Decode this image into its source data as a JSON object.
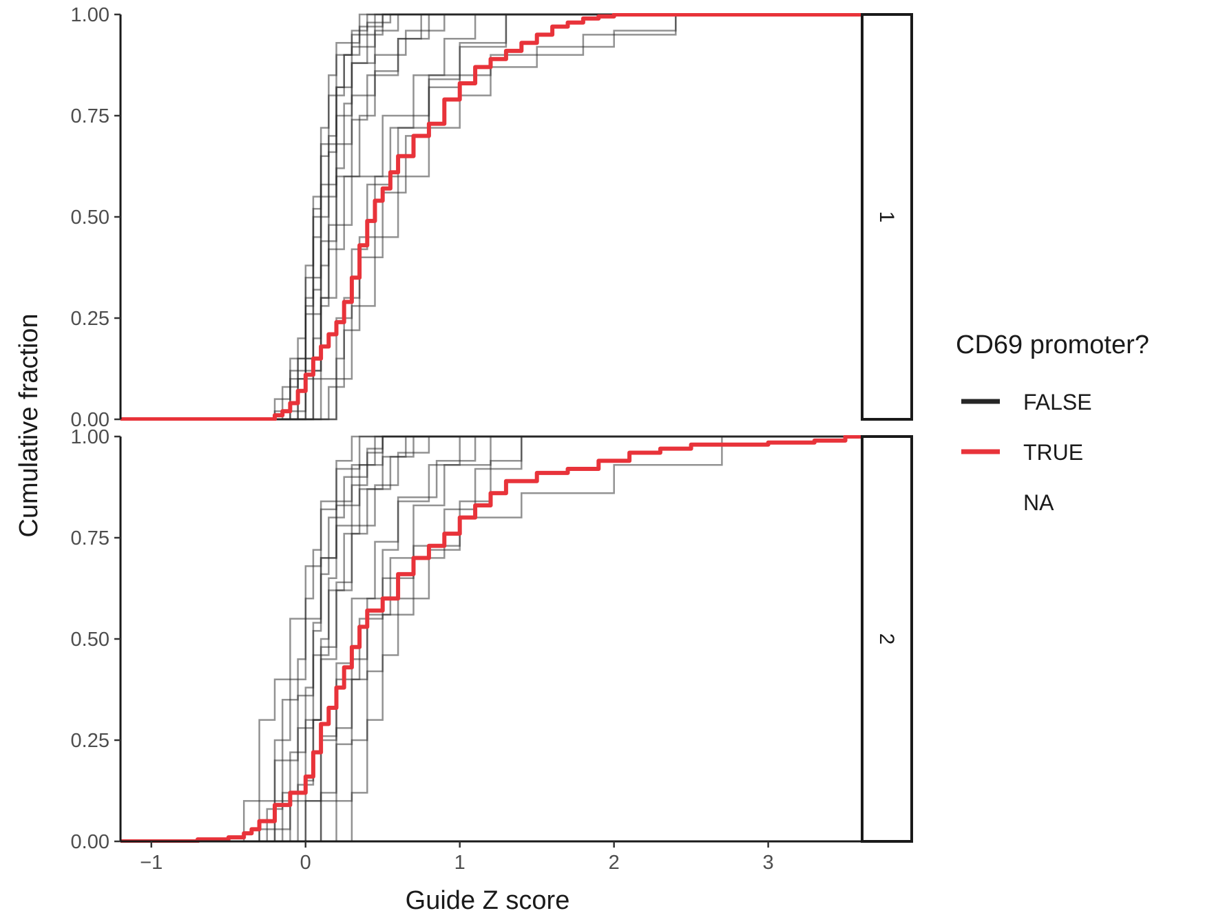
{
  "chart_data": {
    "type": "line",
    "subtype": "ecdf-step",
    "facet_layout": "rows",
    "xlabel": "Guide Z score",
    "ylabel": "Cumulative fraction",
    "xlim": [
      -1.2,
      3.6
    ],
    "ylim": [
      0,
      1
    ],
    "x_ticks": [
      -1,
      0,
      1,
      2,
      3
    ],
    "y_ticks": [
      0,
      0.25,
      0.5,
      0.75,
      1
    ],
    "x_tick_labels": [
      "−1",
      "0",
      "1",
      "2",
      "3"
    ],
    "y_tick_labels": [
      "0.00",
      "0.25",
      "0.50",
      "0.75",
      "1.00"
    ],
    "grid": false,
    "legend": {
      "title": "CD69 promoter?",
      "placement": "right",
      "entries": [
        {
          "label": "FALSE",
          "color": "#262626"
        },
        {
          "label": "TRUE",
          "color": "#e8333a"
        },
        {
          "label": "NA",
          "color": null
        }
      ]
    },
    "colors": {
      "FALSE": "#262626",
      "TRUE": "#e8333a"
    },
    "panels": [
      {
        "strip_label": "1",
        "true_series": {
          "x": [
            -1.2,
            -0.3,
            -0.2,
            -0.15,
            -0.1,
            -0.05,
            0.0,
            0.05,
            0.1,
            0.15,
            0.2,
            0.25,
            0.3,
            0.35,
            0.4,
            0.45,
            0.5,
            0.55,
            0.6,
            0.7,
            0.8,
            0.9,
            1.0,
            1.1,
            1.2,
            1.3,
            1.4,
            1.5,
            1.6,
            1.7,
            1.8,
            1.9,
            2.0,
            2.2,
            2.5,
            3.6
          ],
          "y": [
            0.0,
            0.0,
            0.01,
            0.02,
            0.04,
            0.07,
            0.11,
            0.15,
            0.18,
            0.21,
            0.24,
            0.29,
            0.35,
            0.43,
            0.49,
            0.54,
            0.57,
            0.61,
            0.65,
            0.7,
            0.73,
            0.79,
            0.83,
            0.87,
            0.89,
            0.91,
            0.93,
            0.95,
            0.97,
            0.98,
            0.99,
            0.995,
            1.0,
            1.0,
            1.0,
            1.0
          ]
        },
        "false_series": [
          {
            "x": [
              -0.15,
              -0.05,
              0.0,
              0.05,
              0.1,
              0.15,
              0.2,
              0.3,
              0.4,
              0.55
            ],
            "y": [
              0.0,
              0.1,
              0.3,
              0.5,
              0.65,
              0.8,
              0.9,
              0.95,
              0.98,
              1.0
            ]
          },
          {
            "x": [
              -0.1,
              0.0,
              0.05,
              0.1,
              0.15,
              0.2,
              0.25,
              0.35,
              0.5
            ],
            "y": [
              0.0,
              0.15,
              0.35,
              0.55,
              0.7,
              0.82,
              0.9,
              0.97,
              1.0
            ]
          },
          {
            "x": [
              -0.2,
              -0.1,
              0.0,
              0.05,
              0.1,
              0.2,
              0.3,
              0.45,
              0.6
            ],
            "y": [
              0.0,
              0.12,
              0.28,
              0.45,
              0.58,
              0.75,
              0.88,
              0.96,
              1.0
            ]
          },
          {
            "x": [
              -0.25,
              -0.15,
              -0.05,
              0.0,
              0.05,
              0.1,
              0.15,
              0.2,
              0.35
            ],
            "y": [
              0.0,
              0.08,
              0.2,
              0.38,
              0.55,
              0.72,
              0.85,
              0.93,
              1.0
            ]
          },
          {
            "x": [
              -0.1,
              0.0,
              0.1,
              0.15,
              0.2,
              0.25,
              0.3,
              0.4,
              0.5
            ],
            "y": [
              0.0,
              0.1,
              0.3,
              0.48,
              0.62,
              0.78,
              0.88,
              0.95,
              1.0
            ]
          },
          {
            "x": [
              -0.05,
              0.05,
              0.1,
              0.15,
              0.25,
              0.35,
              0.45,
              0.6,
              0.75
            ],
            "y": [
              0.0,
              0.12,
              0.28,
              0.42,
              0.6,
              0.75,
              0.86,
              0.94,
              1.0
            ]
          },
          {
            "x": [
              -0.3,
              -0.2,
              -0.1,
              0.0,
              0.05,
              0.1,
              0.2,
              0.3,
              0.45
            ],
            "y": [
              0.0,
              0.05,
              0.15,
              0.35,
              0.52,
              0.68,
              0.82,
              0.92,
              1.0
            ]
          },
          {
            "x": [
              0.0,
              0.1,
              0.2,
              0.3,
              0.4,
              0.55,
              0.7,
              0.9,
              1.1
            ],
            "y": [
              0.0,
              0.1,
              0.25,
              0.42,
              0.58,
              0.72,
              0.85,
              0.94,
              1.0
            ]
          },
          {
            "x": [
              0.05,
              0.15,
              0.25,
              0.35,
              0.5,
              0.65,
              0.8,
              1.0,
              1.3
            ],
            "y": [
              0.0,
              0.08,
              0.22,
              0.4,
              0.56,
              0.7,
              0.82,
              0.92,
              1.0
            ]
          },
          {
            "x": [
              0.1,
              0.2,
              0.3,
              0.45,
              0.6,
              0.8,
              1.0,
              1.2,
              1.5,
              2.0,
              2.4
            ],
            "y": [
              0.0,
              0.1,
              0.28,
              0.45,
              0.6,
              0.72,
              0.8,
              0.87,
              0.92,
              0.96,
              1.0
            ]
          },
          {
            "x": [
              -0.6,
              -0.2,
              0.0,
              0.1,
              0.2,
              0.3,
              0.5,
              0.8,
              1.2,
              1.8,
              2.4
            ],
            "y": [
              0.0,
              0.02,
              0.12,
              0.3,
              0.48,
              0.6,
              0.75,
              0.85,
              0.9,
              0.95,
              1.0
            ]
          },
          {
            "x": [
              -0.15,
              -0.05,
              0.05,
              0.1,
              0.15,
              0.2,
              0.25,
              0.3,
              0.4
            ],
            "y": [
              0.0,
              0.15,
              0.32,
              0.5,
              0.66,
              0.8,
              0.9,
              0.96,
              1.0
            ]
          },
          {
            "x": [
              0.0,
              0.05,
              0.1,
              0.15,
              0.2,
              0.3,
              0.45,
              0.65,
              0.9
            ],
            "y": [
              0.0,
              0.2,
              0.38,
              0.55,
              0.68,
              0.8,
              0.9,
              0.96,
              1.0
            ]
          },
          {
            "x": [
              -0.2,
              -0.1,
              0.0,
              0.1,
              0.2,
              0.3,
              0.4,
              0.6,
              0.8
            ],
            "y": [
              0.0,
              0.1,
              0.26,
              0.44,
              0.6,
              0.74,
              0.85,
              0.94,
              1.0
            ]
          },
          {
            "x": [
              0.15,
              0.2,
              0.25,
              0.35,
              0.45,
              0.6,
              0.8,
              1.0,
              1.3
            ],
            "y": [
              0.0,
              0.15,
              0.3,
              0.45,
              0.6,
              0.72,
              0.84,
              0.93,
              1.0
            ]
          }
        ]
      },
      {
        "strip_label": "2",
        "true_series": {
          "x": [
            -1.2,
            -0.7,
            -0.5,
            -0.4,
            -0.35,
            -0.3,
            -0.2,
            -0.1,
            0.0,
            0.05,
            0.1,
            0.15,
            0.2,
            0.25,
            0.3,
            0.35,
            0.4,
            0.5,
            0.6,
            0.7,
            0.8,
            0.9,
            1.0,
            1.1,
            1.2,
            1.3,
            1.5,
            1.7,
            1.9,
            2.1,
            2.3,
            2.5,
            3.0,
            3.3,
            3.5,
            3.6
          ],
          "y": [
            0.0,
            0.005,
            0.01,
            0.02,
            0.03,
            0.05,
            0.09,
            0.12,
            0.16,
            0.22,
            0.29,
            0.33,
            0.38,
            0.43,
            0.48,
            0.53,
            0.57,
            0.6,
            0.66,
            0.7,
            0.73,
            0.76,
            0.8,
            0.83,
            0.86,
            0.89,
            0.91,
            0.92,
            0.94,
            0.96,
            0.97,
            0.98,
            0.985,
            0.99,
            1.0,
            1.0
          ]
        },
        "false_series": [
          {
            "x": [
              -0.3,
              -0.2,
              -0.1,
              0.0,
              0.05,
              0.1,
              0.15,
              0.25,
              0.4,
              0.5
            ],
            "y": [
              0.0,
              0.1,
              0.22,
              0.38,
              0.52,
              0.66,
              0.8,
              0.9,
              0.97,
              1.0
            ]
          },
          {
            "x": [
              -0.2,
              -0.1,
              0.0,
              0.1,
              0.15,
              0.2,
              0.3,
              0.4,
              0.5
            ],
            "y": [
              0.0,
              0.12,
              0.3,
              0.5,
              0.65,
              0.78,
              0.88,
              0.96,
              1.0
            ]
          },
          {
            "x": [
              -0.35,
              -0.25,
              -0.15,
              -0.05,
              0.05,
              0.1,
              0.2,
              0.3,
              0.45
            ],
            "y": [
              0.0,
              0.08,
              0.2,
              0.36,
              0.54,
              0.7,
              0.84,
              0.93,
              1.0
            ]
          },
          {
            "x": [
              -0.4,
              -0.3,
              -0.2,
              -0.1,
              0.0,
              0.1,
              0.2,
              0.35,
              0.5
            ],
            "y": [
              0.0,
              0.1,
              0.25,
              0.4,
              0.55,
              0.7,
              0.83,
              0.93,
              1.0
            ]
          },
          {
            "x": [
              -0.1,
              0.0,
              0.05,
              0.1,
              0.2,
              0.3,
              0.4,
              0.55,
              0.7
            ],
            "y": [
              0.0,
              0.15,
              0.3,
              0.45,
              0.62,
              0.76,
              0.87,
              0.95,
              1.0
            ]
          },
          {
            "x": [
              -0.45,
              -0.4,
              -0.3,
              -0.2,
              -0.1,
              0.0,
              0.1,
              0.2,
              0.35
            ],
            "y": [
              0.0,
              0.1,
              0.3,
              0.4,
              0.55,
              0.68,
              0.82,
              0.92,
              1.0
            ]
          },
          {
            "x": [
              0.0,
              0.1,
              0.2,
              0.3,
              0.4,
              0.5,
              0.6,
              0.8,
              1.0
            ],
            "y": [
              0.0,
              0.12,
              0.28,
              0.45,
              0.6,
              0.72,
              0.84,
              0.93,
              1.0
            ]
          },
          {
            "x": [
              0.1,
              0.2,
              0.3,
              0.4,
              0.5,
              0.7,
              0.9,
              1.1,
              1.4
            ],
            "y": [
              0.0,
              0.1,
              0.25,
              0.42,
              0.56,
              0.7,
              0.82,
              0.92,
              1.0
            ]
          },
          {
            "x": [
              -0.6,
              -0.3,
              -0.1,
              0.1,
              0.2,
              0.35,
              0.5,
              0.7,
              1.0,
              1.4,
              2.0,
              2.7
            ],
            "y": [
              0.0,
              0.03,
              0.1,
              0.25,
              0.4,
              0.55,
              0.65,
              0.73,
              0.8,
              0.86,
              0.93,
              1.0
            ]
          },
          {
            "x": [
              -0.25,
              -0.15,
              -0.05,
              0.05,
              0.15,
              0.25,
              0.35,
              0.5,
              0.65
            ],
            "y": [
              0.0,
              0.12,
              0.28,
              0.46,
              0.62,
              0.76,
              0.87,
              0.95,
              1.0
            ]
          },
          {
            "x": [
              0.05,
              0.1,
              0.2,
              0.3,
              0.4,
              0.55,
              0.7,
              0.9,
              1.2
            ],
            "y": [
              0.0,
              0.1,
              0.24,
              0.4,
              0.56,
              0.7,
              0.83,
              0.93,
              1.0
            ]
          },
          {
            "x": [
              -0.15,
              -0.05,
              0.05,
              0.1,
              0.2,
              0.3,
              0.45,
              0.6,
              0.8
            ],
            "y": [
              0.0,
              0.14,
              0.3,
              0.48,
              0.64,
              0.78,
              0.88,
              0.96,
              1.0
            ]
          },
          {
            "x": [
              -0.3,
              -0.2,
              -0.15,
              -0.05,
              0.0,
              0.05,
              0.1,
              0.2,
              0.3
            ],
            "y": [
              0.0,
              0.2,
              0.35,
              0.45,
              0.6,
              0.72,
              0.84,
              0.94,
              1.0
            ]
          },
          {
            "x": [
              0.2,
              0.3,
              0.4,
              0.5,
              0.6,
              0.8,
              1.0,
              1.2,
              1.4
            ],
            "y": [
              0.0,
              0.12,
              0.3,
              0.46,
              0.6,
              0.72,
              0.84,
              0.94,
              1.0
            ]
          },
          {
            "x": [
              -0.1,
              0.0,
              0.1,
              0.2,
              0.3,
              0.45,
              0.6,
              0.85,
              1.1
            ],
            "y": [
              0.0,
              0.1,
              0.26,
              0.44,
              0.6,
              0.74,
              0.85,
              0.94,
              1.0
            ]
          }
        ]
      }
    ]
  }
}
